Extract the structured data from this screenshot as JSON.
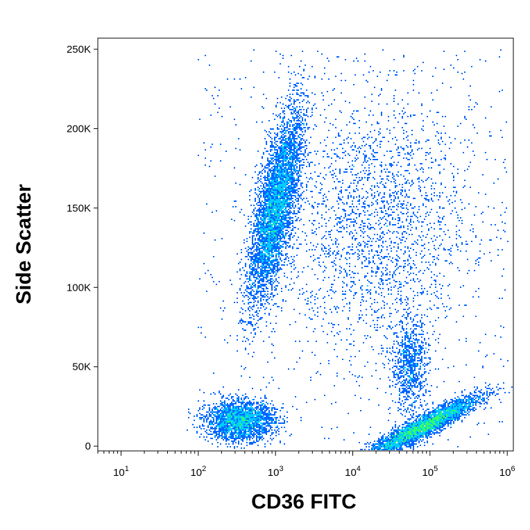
{
  "chart_data": {
    "type": "scatter",
    "title": "",
    "xlabel": "CD36 FITC",
    "ylabel": "Side Scatter",
    "x_scale": "log",
    "xlim": [
      5,
      1200000
    ],
    "ylim": [
      -3000,
      257000
    ],
    "x_ticks": [
      {
        "value": 10,
        "base": "10",
        "exp": "1"
      },
      {
        "value": 100,
        "base": "10",
        "exp": "2"
      },
      {
        "value": 1000,
        "base": "10",
        "exp": "3"
      },
      {
        "value": 10000,
        "base": "10",
        "exp": "4"
      },
      {
        "value": 100000,
        "base": "10",
        "exp": "5"
      },
      {
        "value": 1000000,
        "base": "10",
        "exp": "6"
      }
    ],
    "y_ticks": [
      {
        "value": 0,
        "label": "0"
      },
      {
        "value": 50000,
        "label": "50K"
      },
      {
        "value": 100000,
        "label": "100K"
      },
      {
        "value": 150000,
        "label": "150K"
      },
      {
        "value": 200000,
        "label": "200K"
      },
      {
        "value": 250000,
        "label": "250K"
      }
    ],
    "grid": false,
    "legend": "none",
    "density_colormap": [
      "#0000cc",
      "#0066ff",
      "#00ccff",
      "#33ff66",
      "#ffff00",
      "#ff8800",
      "#ff0000"
    ],
    "populations": [
      {
        "x_center": 1000,
        "y_center": 150000,
        "x_spread_decades": 0.12,
        "y_spread": 30000,
        "peak_density": "cyan"
      },
      {
        "x_center": 350,
        "y_center": 16000,
        "x_spread_decades": 0.22,
        "y_spread": 6000,
        "peak_density": "yellow"
      },
      {
        "x_center": 80000,
        "y_center": 12000,
        "x_spread_decades": 0.35,
        "y_spread": 5000,
        "peak_density": "red"
      },
      {
        "x_center": 55000,
        "y_center": 50000,
        "x_spread_decades": 0.12,
        "y_spread": 15000,
        "peak_density": "green"
      },
      {
        "x_center": 20000,
        "y_center": 140000,
        "x_spread_decades": 0.6,
        "y_spread": 40000,
        "peak_density": "blue"
      }
    ]
  }
}
